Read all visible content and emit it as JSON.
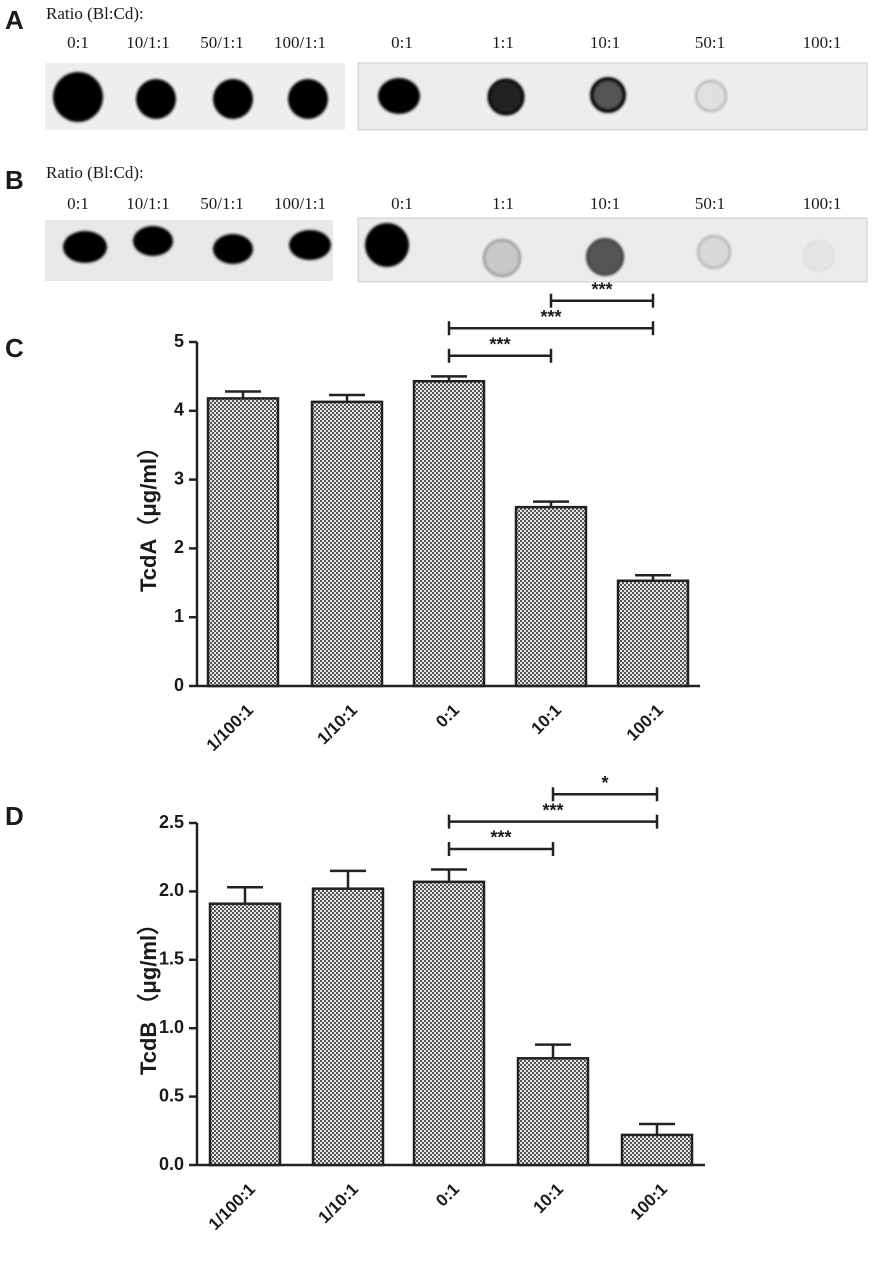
{
  "blots": [
    {
      "label": "A",
      "ratio_label": "Ratio (Bl:Cd):",
      "left": [
        "0:1",
        "10/1:1",
        "50/1:1",
        "100/1:1"
      ],
      "right": [
        "0:1",
        "1:1",
        "10:1",
        "50:1",
        "100:1"
      ]
    },
    {
      "label": "B",
      "ratio_label": "Ratio (Bl:Cd):",
      "left": [
        "0:1",
        "10/1:1",
        "50/1:1",
        "100/1:1"
      ],
      "right": [
        "0:1",
        "1:1",
        "10:1",
        "50:1",
        "100:1"
      ]
    }
  ],
  "chart_data": [
    {
      "type": "bar",
      "label": "C",
      "ylabel": "TcdA（μg/ml）",
      "color": "#555555",
      "categories": [
        "1/100:1",
        "1/10:1",
        "0:1",
        "10:1",
        "100:1"
      ],
      "values": [
        4.18,
        4.13,
        4.43,
        2.6,
        1.53
      ],
      "errors": [
        0.1,
        0.1,
        0.07,
        0.08,
        0.08
      ],
      "ylim": [
        0,
        5
      ],
      "yticks": [
        0,
        1,
        2,
        3,
        4,
        5
      ],
      "annotations": [
        {
          "from": "0:1",
          "to": "10:1",
          "label": "***"
        },
        {
          "from": "0:1",
          "to": "100:1",
          "label": "***"
        },
        {
          "from": "10:1",
          "to": "100:1",
          "label": "***"
        }
      ]
    },
    {
      "type": "bar",
      "label": "D",
      "ylabel": "TcdB （μg/ml）",
      "color": "#555555",
      "categories": [
        "1/100:1",
        "1/10:1",
        "0:1",
        "10:1",
        "100:1"
      ],
      "values": [
        1.91,
        2.02,
        2.07,
        0.78,
        0.22
      ],
      "errors": [
        0.12,
        0.13,
        0.09,
        0.1,
        0.08
      ],
      "ylim": [
        0,
        2.5
      ],
      "yticks": [
        {
          "value": 0,
          "label": "0.0"
        },
        0.5,
        {
          "value": 1,
          "label": "1.0"
        },
        1.5,
        {
          "value": 2,
          "label": "2.0"
        },
        2.5
      ],
      "annotations": [
        {
          "from": "0:1",
          "to": "10:1",
          "label": "***"
        },
        {
          "from": "0:1",
          "to": "100:1",
          "label": "***"
        },
        {
          "from": "10:1",
          "to": "100:1",
          "label": "*"
        }
      ]
    }
  ]
}
